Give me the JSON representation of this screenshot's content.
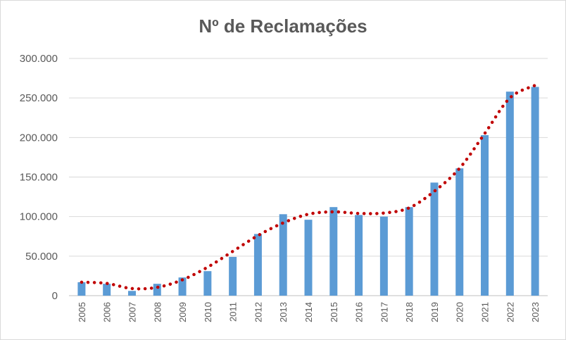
{
  "chart_data": {
    "type": "bar",
    "title": "Nº de Reclamações",
    "xlabel": "",
    "ylabel": "",
    "ylim": [
      0,
      300000
    ],
    "y_ticks": [
      0,
      50000,
      100000,
      150000,
      200000,
      250000,
      300000
    ],
    "y_tick_labels": [
      "0",
      "50.000",
      "100.000",
      "150.000",
      "200.000",
      "250.000",
      "300.000"
    ],
    "grid": true,
    "legend": "none",
    "categories": [
      "2005",
      "2006",
      "2007",
      "2008",
      "2009",
      "2010",
      "2011",
      "2012",
      "2013",
      "2014",
      "2015",
      "2016",
      "2017",
      "2018",
      "2019",
      "2020",
      "2021",
      "2022",
      "2023"
    ],
    "series": [
      {
        "values": [
          17000,
          15000,
          6000,
          15000,
          23000,
          31000,
          49000,
          78000,
          103000,
          96000,
          112000,
          102000,
          100000,
          112000,
          143000,
          161000,
          203000,
          258000,
          264000
        ],
        "color": "#5b9bd5"
      }
    ],
    "trendline": {
      "style": "dotted",
      "color": "#c00000",
      "values": [
        17000,
        15500,
        9000,
        10500,
        20000,
        36000,
        56000,
        76000,
        92000,
        103000,
        106000,
        104000,
        104500,
        111000,
        132000,
        161000,
        205000,
        250000,
        266000
      ]
    }
  }
}
